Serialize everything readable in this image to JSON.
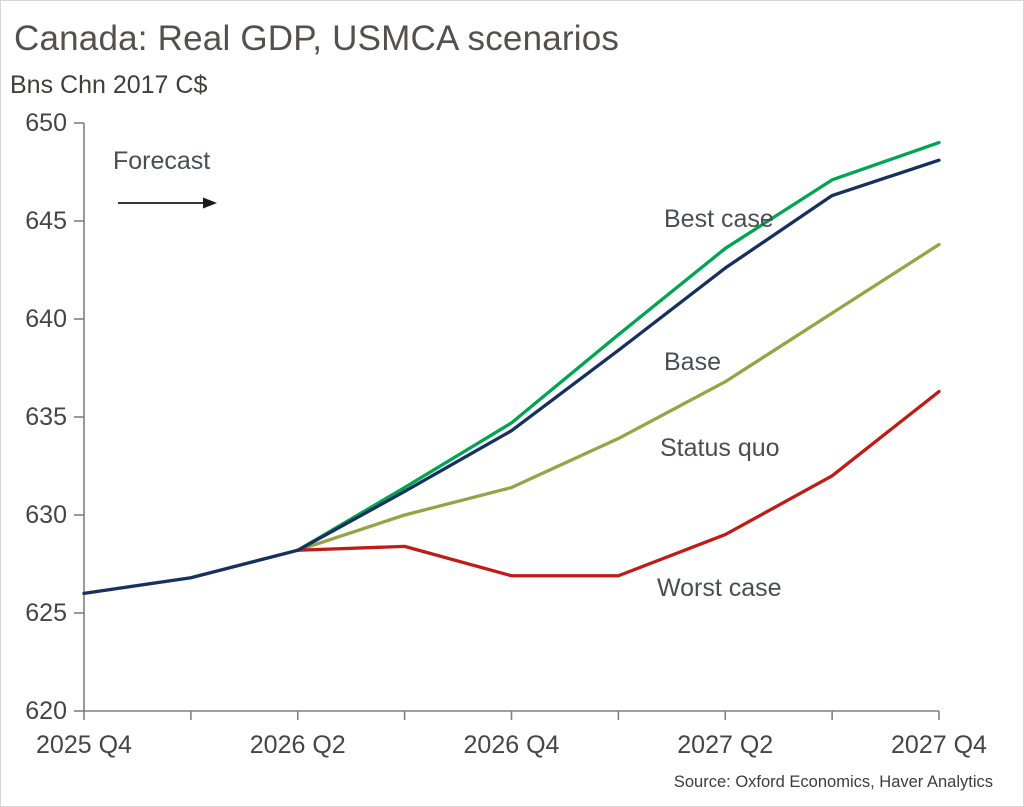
{
  "header": {
    "title": "Canada: Real GDP, USMCA scenarios",
    "subtitle": "Bns Chn 2017 C$"
  },
  "annotations": {
    "forecast": "Forecast",
    "best_case": "Best case",
    "base": "Base",
    "status_quo": "Status quo",
    "worst_case": "Worst case"
  },
  "source": "Source: Oxford Economics, Haver Analytics",
  "colors": {
    "best_case": "#00a551",
    "base": "#17305f",
    "status_quo": "#93a545",
    "worst_case": "#bf1c17",
    "axis": "#808080",
    "title_text": "#55504b",
    "annotation_text": "#4a4d55"
  },
  "chart_data": {
    "type": "line",
    "title": "Canada: Real GDP, USMCA scenarios",
    "ylabel": "Bns Chn 2017 C$",
    "xlabel": "",
    "grid": false,
    "legend_position": "inline-annotations",
    "ylim": [
      620,
      650
    ],
    "yticks": [
      620,
      625,
      630,
      635,
      640,
      645,
      650
    ],
    "categories": [
      "2025 Q4",
      "2026 Q1",
      "2026 Q2",
      "2026 Q3",
      "2026 Q4",
      "2027 Q1",
      "2027 Q2",
      "2027 Q3",
      "2027 Q4"
    ],
    "x_tick_labels": [
      "2025 Q4",
      "2026 Q2",
      "2026 Q4",
      "2027 Q2",
      "2027 Q4"
    ],
    "series": [
      {
        "name": "Best case",
        "color": "#00a551",
        "values": [
          null,
          null,
          628.2,
          631.4,
          634.7,
          639.2,
          643.6,
          647.1,
          649.0
        ]
      },
      {
        "name": "Base",
        "color": "#17305f",
        "values": [
          626.0,
          626.8,
          628.2,
          631.2,
          634.3,
          638.4,
          642.6,
          646.3,
          648.1
        ]
      },
      {
        "name": "Status quo",
        "color": "#93a545",
        "values": [
          null,
          null,
          628.2,
          630.0,
          631.4,
          633.9,
          636.8,
          640.3,
          643.8
        ]
      },
      {
        "name": "Worst case",
        "color": "#bf1c17",
        "values": [
          null,
          null,
          628.2,
          628.4,
          626.9,
          626.9,
          629.0,
          632.0,
          636.3
        ]
      }
    ]
  }
}
